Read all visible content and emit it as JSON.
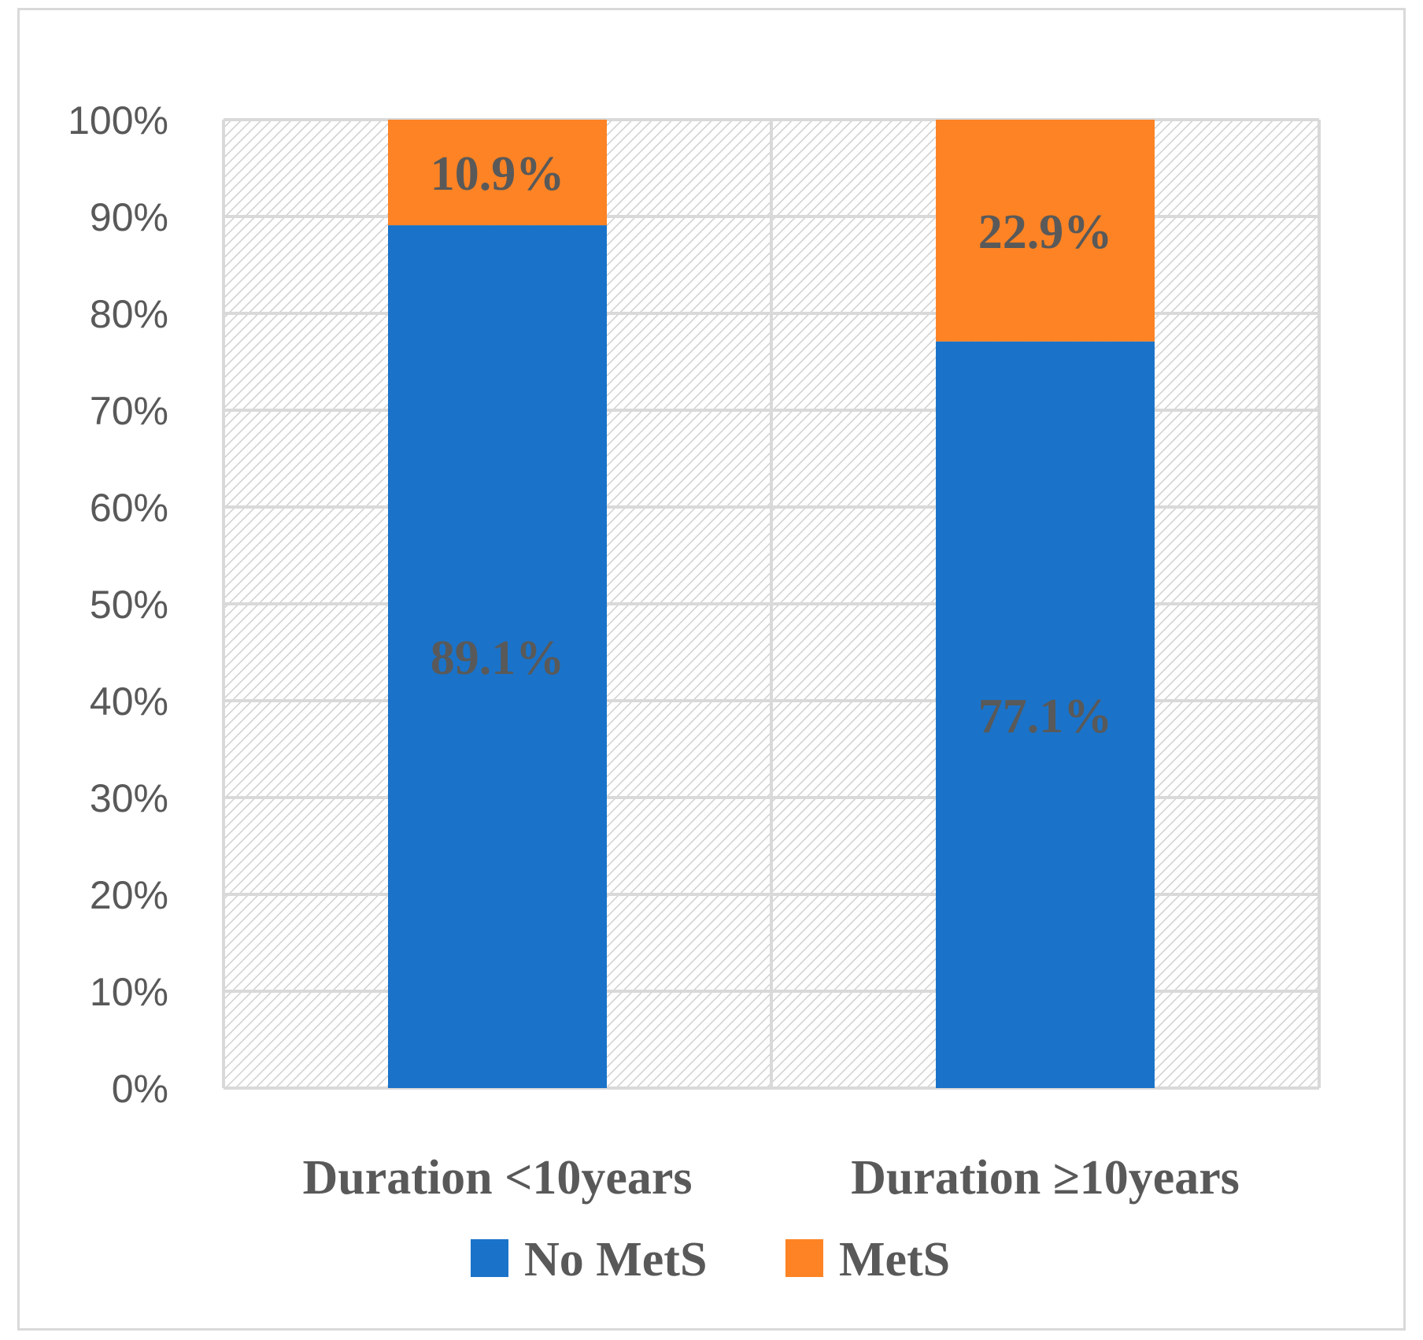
{
  "chart_data": {
    "type": "bar",
    "stacked": true,
    "percent_axis": true,
    "categories": [
      "Duration <10years",
      "Duration ≥10years"
    ],
    "series": [
      {
        "name": "No MetS",
        "color": "#1a73c9",
        "values": [
          89.1,
          77.1
        ],
        "labels": [
          "89.1%",
          "77.1%"
        ]
      },
      {
        "name": "MetS",
        "color": "#fd8324",
        "values": [
          10.9,
          22.9
        ],
        "labels": [
          "10.9%",
          "22.9%"
        ]
      }
    ],
    "yticks": [
      "0%",
      "10%",
      "20%",
      "30%",
      "40%",
      "50%",
      "60%",
      "70%",
      "80%",
      "90%",
      "100%"
    ],
    "ylim": [
      0,
      100
    ],
    "grid": true,
    "plot_background": "diagonal-hatch",
    "legend_position": "bottom"
  }
}
